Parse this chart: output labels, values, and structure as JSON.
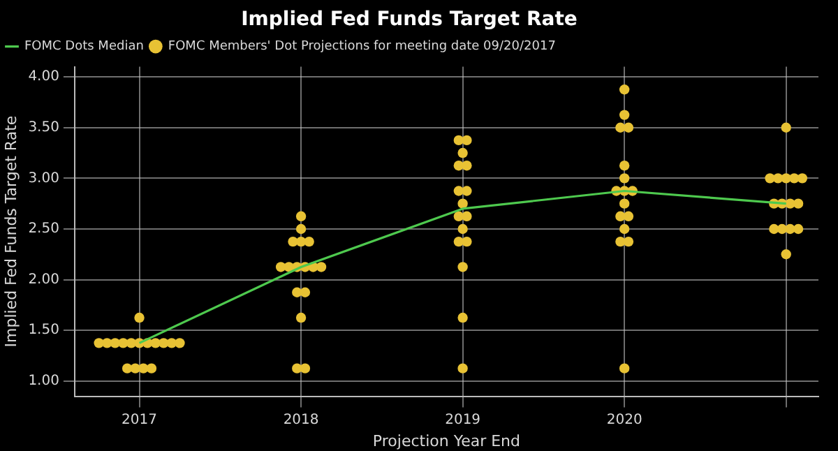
{
  "chart_data": {
    "type": "scatter",
    "title": "Implied Fed Funds Target Rate",
    "xlabel": "Projection Year End",
    "ylabel": "Implied Fed Funds Target Rate",
    "series": [
      {
        "name": "FOMC Members' Dot Projections for meeting date 09/20/2017",
        "type": "scatter",
        "color": "#e8c234",
        "marker": "circle",
        "x": [
          2017,
          2016.75,
          2016.8,
          2016.85,
          2016.9,
          2016.95,
          2017,
          2017.05,
          2017.1,
          2017.15,
          2017.2,
          2017.25,
          2016.925,
          2016.975,
          2017.025,
          2017.075,
          2018,
          2018,
          2017.95,
          2018,
          2018.05,
          2017.875,
          2017.925,
          2017.975,
          2018.025,
          2018.075,
          2018.125,
          2017.975,
          2018.025,
          2018,
          2017.975,
          2018.025,
          2018.975,
          2019.025,
          2019,
          2018.975,
          2019.025,
          2018.975,
          2019.025,
          2019,
          2018.975,
          2019.025,
          2019,
          2018.975,
          2019.025,
          2019,
          2019,
          2019,
          2020,
          2020,
          2019.975,
          2020.025,
          2020,
          2020,
          2019.95,
          2020,
          2020.05,
          2020,
          2019.975,
          2020.025,
          2020,
          2019.975,
          2020.025,
          2020,
          2021,
          2020.9,
          2020.95,
          2021,
          2021.05,
          2021.1,
          2020.925,
          2020.975,
          2021.025,
          2021.075,
          2020.925,
          2020.975,
          2021.025,
          2021.075,
          2021
        ],
        "values": [
          1.625,
          1.375,
          1.375,
          1.375,
          1.375,
          1.375,
          1.375,
          1.375,
          1.375,
          1.375,
          1.375,
          1.375,
          1.125,
          1.125,
          1.125,
          1.125,
          2.625,
          2.5,
          2.375,
          2.375,
          2.375,
          2.125,
          2.125,
          2.125,
          2.125,
          2.125,
          2.125,
          1.875,
          1.875,
          1.625,
          1.125,
          1.125,
          3.375,
          3.375,
          3.25,
          3.125,
          3.125,
          2.875,
          2.875,
          2.75,
          2.625,
          2.625,
          2.5,
          2.375,
          2.375,
          2.125,
          1.625,
          1.125,
          3.875,
          3.625,
          3.5,
          3.5,
          3.125,
          3.0,
          2.875,
          2.875,
          2.875,
          2.75,
          2.625,
          2.625,
          2.5,
          2.375,
          2.375,
          1.125,
          3.5,
          3.0,
          3.0,
          3.0,
          3.0,
          3.0,
          2.75,
          2.75,
          2.75,
          2.75,
          2.5,
          2.5,
          2.5,
          2.5,
          2.25
        ]
      },
      {
        "name": "FOMC Dots Median",
        "type": "line",
        "color": "#4ec94e",
        "x": [
          2017,
          2018,
          2019,
          2020,
          2021
        ],
        "values": [
          1.375,
          2.125,
          2.7,
          2.875,
          2.75
        ]
      }
    ],
    "xlim": [
      2016.6,
      2021.2
    ],
    "xticks": [
      2017,
      2018,
      2019,
      2020,
      {
        "value": 2021,
        "label": null
      }
    ],
    "ylim": [
      0.85,
      4.1
    ],
    "yticks": [
      {
        "value": 1,
        "label": "1.00"
      },
      {
        "value": 1.5,
        "label": "1.50"
      },
      {
        "value": 2,
        "label": "2.00"
      },
      {
        "value": 2.5,
        "label": "2.50"
      },
      {
        "value": 3,
        "label": "3.00"
      },
      {
        "value": 3.5,
        "label": "3.50"
      },
      {
        "value": 4,
        "label": "4.00"
      }
    ],
    "grid": true,
    "legend": "top left"
  }
}
